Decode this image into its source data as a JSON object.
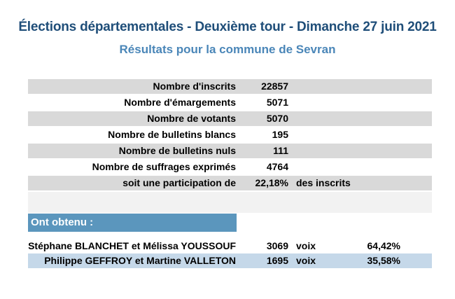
{
  "header": {
    "title": "Élections départementales - Deuxième tour - Dimanche 27 juin 2021",
    "subtitle": "Résultats pour la commune de Sevran"
  },
  "stats": [
    {
      "label": "Nombre d'inscrits",
      "value": "22857",
      "unit": ""
    },
    {
      "label": "Nombre d'émargements",
      "value": "5071",
      "unit": ""
    },
    {
      "label": "Nombre de votants",
      "value": "5070",
      "unit": ""
    },
    {
      "label": "Nombre de bulletins blancs",
      "value": "195",
      "unit": ""
    },
    {
      "label": "Nombre de bulletins nuls",
      "value": "111",
      "unit": ""
    },
    {
      "label": "Nombre de suffrages exprimés",
      "value": "4764",
      "unit": ""
    },
    {
      "label": "soit une participation de",
      "value": "22,18%",
      "unit": "des inscrits"
    }
  ],
  "results": {
    "heading": "Ont obtenu :",
    "candidates": [
      {
        "name": "Stéphane BLANCHET et Mélissa YOUSSOUF",
        "votes": "3069",
        "unit": "voix",
        "percent": "64,42%"
      },
      {
        "name": "Philippe GEFFROY et Martine VALLETON",
        "votes": "1695",
        "unit": "voix",
        "percent": "35,58%"
      }
    ]
  },
  "colors": {
    "title": "#1f4e79",
    "subtitle": "#4a86b8",
    "row_shade": "#d9d9d9",
    "heading_bg": "#5b96bd",
    "candidate_alt": "#c5d8e9"
  }
}
